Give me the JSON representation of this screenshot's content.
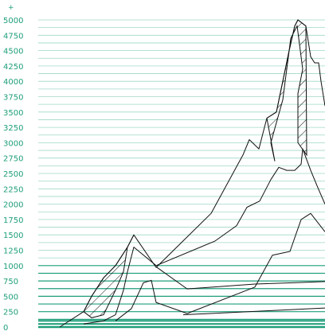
{
  "chart_data": {
    "type": "line",
    "title": "",
    "xlabel": "",
    "ylabel": "",
    "ylim": [
      0,
      5000
    ],
    "y_ticks": [
      0,
      250,
      500,
      750,
      1000,
      1250,
      1500,
      1750,
      2000,
      2250,
      2500,
      2750,
      3000,
      3250,
      3500,
      3750,
      4000,
      4250,
      4500,
      4750,
      5000
    ],
    "y_tick_labels": [
      "0",
      "250",
      "500",
      "750",
      "1000",
      "1250",
      "1500",
      "1750",
      "2000",
      "2250",
      "2500",
      "2750",
      "3000",
      "3250",
      "3500",
      "3750",
      "4000",
      "4250",
      "4500",
      "4750",
      "5000"
    ],
    "top_marker": "+",
    "grid": true,
    "grid_color": "#9fd8c8",
    "strong_grid_color": "#1e9e7a",
    "line_color": "#111111",
    "series": [
      {
        "x": [
          75,
          105,
          115,
          130,
          145,
          160,
          168,
          196,
          265,
          305,
          313,
          325,
          335,
          347,
          363,
          370,
          374,
          384,
          390,
          395,
          400,
          403,
          408
        ],
        "y": [
          0,
          250,
          500,
          800,
          1000,
          1300,
          1500,
          970,
          1850,
          2800,
          3050,
          2900,
          3400,
          3500,
          4500,
          4900,
          5000,
          4900,
          4400,
          4300,
          4300,
          4000,
          3600
        ]
      },
      {
        "x": [
          105,
          130,
          145,
          155,
          160,
          168,
          196,
          270,
          297,
          310,
          326,
          340,
          350,
          360,
          370,
          378,
          380,
          390,
          398,
          408
        ],
        "y": [
          50,
          100,
          200,
          600,
          900,
          1300,
          1000,
          1400,
          1650,
          1950,
          2050,
          2400,
          2600,
          2550,
          2550,
          2650,
          2900,
          2550,
          2300,
          2000
        ]
      },
      {
        "x": [
          145,
          165,
          180,
          190,
          196,
          235,
          320,
          342,
          364,
          378,
          390,
          408
        ],
        "y": [
          100,
          300,
          720,
          760,
          400,
          220,
          650,
          1170,
          1230,
          1750,
          1850,
          1550
        ]
      },
      {
        "x": [
          196,
          235,
          320,
          408
        ],
        "y": [
          980,
          620,
          700,
          740
        ]
      },
      {
        "x": [
          230,
          408
        ],
        "y": [
          200,
          310
        ]
      }
    ],
    "hatched_regions": [
      {
        "x": [
          105,
          115,
          130,
          145,
          160,
          168,
          160,
          155,
          145,
          130,
          115
        ],
        "y": [
          250,
          500,
          800,
          1000,
          1300,
          1500,
          1300,
          900,
          600,
          200,
          150
        ]
      },
      {
        "x": [
          335,
          347,
          363,
          370,
          374,
          384,
          385,
          374,
          374,
          380,
          373,
          365,
          355,
          340,
          345
        ],
        "y": [
          3400,
          3500,
          4500,
          4900,
          5000,
          4900,
          2800,
          3000,
          3800,
          4200,
          4900,
          4700,
          3700,
          3000,
          2700
        ]
      }
    ]
  }
}
